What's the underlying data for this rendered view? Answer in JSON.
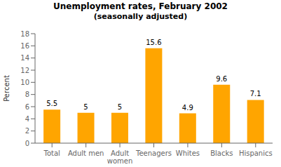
{
  "chart_data": {
    "type": "bar",
    "title": "Unemployment rates, February 2002",
    "subtitle": "(seasonally adjusted)",
    "categories": [
      "Total",
      "Adult men",
      "Adult\nwomen",
      "Teenagers",
      "Whites",
      "Blacks",
      "Hispanics"
    ],
    "values": [
      5.5,
      5.0,
      5.0,
      15.6,
      4.9,
      9.6,
      7.1
    ],
    "color": "#FFA500",
    "ylabel": "Percent",
    "ylim": [
      0,
      18
    ],
    "yticks": [
      0,
      2,
      4,
      6,
      8,
      10,
      12,
      14,
      16,
      18
    ],
    "grid": false,
    "data_labels": true
  }
}
